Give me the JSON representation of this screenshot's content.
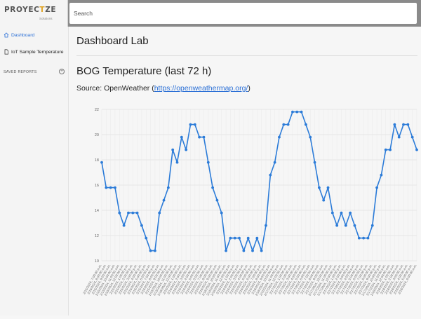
{
  "logo": {
    "text_a": "PROYEC",
    "text_b": "T",
    "text_c": "ZE",
    "sub": "Solutions"
  },
  "search": {
    "placeholder": "Search"
  },
  "sidebar": {
    "items": [
      {
        "label": "Dashboard",
        "icon": "home-icon",
        "active": true
      },
      {
        "label": "IoT Sample Temperature",
        "icon": "document-icon",
        "active": false
      }
    ],
    "saved_reports_label": "SAVED REPORTS",
    "add_icon": "plus-circle-icon"
  },
  "main": {
    "page_title": "Dashboard Lab",
    "chart_title": "BOG Temperature (last 72 h)",
    "source_prefix": "Source: OpenWeather (",
    "source_link": "https://openweathermap.org/",
    "source_suffix": ")"
  },
  "colors": {
    "accent": "#2a6fd6",
    "line": "#2b7bd8",
    "logo_accent": "#e0a426"
  },
  "chart_data": {
    "type": "line",
    "ylim": [
      10,
      22
    ],
    "yticks": [
      10,
      12,
      14,
      16,
      18,
      20,
      22
    ],
    "grid": true,
    "x": [
      "2/15/2024, 7:00:00 a.m.",
      "2/15/2024, 8:00:00 a.m.",
      "2/15/2024, 9:00:00 a.m.",
      "2/15/2024, 10:00:00 a.m.",
      "2/15/2024, 11:00:00 a.m.",
      "2/15/2024, 12:00:00 p.m.",
      "2/15/2024, 1:00:00 p.m.",
      "2/15/2024, 2:00:00 p.m.",
      "2/15/2024, 3:00:00 p.m.",
      "2/15/2024, 4:00:00 p.m.",
      "2/15/2024, 5:00:00 p.m.",
      "2/15/2024, 6:00:00 p.m.",
      "2/15/2024, 7:00:00 p.m.",
      "2/15/2024, 8:00:00 p.m.",
      "2/15/2024, 9:00:00 p.m.",
      "2/15/2024, 10:00:00 p.m.",
      "2/15/2024, 11:00:00 p.m.",
      "2/16/2024, 12:00:00 a.m.",
      "2/16/2024, 1:00:00 a.m.",
      "2/16/2024, 2:00:00 a.m.",
      "2/16/2024, 3:00:00 a.m.",
      "2/16/2024, 4:00:00 a.m.",
      "2/16/2024, 5:00:00 a.m.",
      "2/16/2024, 6:00:00 a.m.",
      "2/16/2024, 7:00:00 a.m.",
      "2/16/2024, 8:00:00 a.m.",
      "2/16/2024, 9:00:00 a.m.",
      "2/16/2024, 10:00:00 a.m.",
      "2/16/2024, 11:00:00 a.m.",
      "2/16/2024, 12:00:00 p.m.",
      "2/16/2024, 1:00:00 p.m.",
      "2/16/2024, 2:00:00 p.m.",
      "2/16/2024, 3:00:00 p.m.",
      "2/16/2024, 4:00:00 p.m.",
      "2/16/2024, 5:00:00 p.m.",
      "2/16/2024, 6:00:00 p.m.",
      "2/16/2024, 7:00:00 p.m.",
      "2/16/2024, 8:00:00 p.m.",
      "2/16/2024, 9:00:00 p.m.",
      "2/16/2024, 10:00:00 p.m.",
      "2/16/2024, 11:00:00 p.m.",
      "2/17/2024, 12:00:00 a.m.",
      "2/17/2024, 1:00:00 a.m.",
      "2/17/2024, 2:00:00 a.m.",
      "2/17/2024, 3:00:00 a.m.",
      "2/17/2024, 4:00:00 a.m.",
      "2/17/2024, 5:00:00 a.m.",
      "2/17/2024, 6:00:00 a.m.",
      "2/17/2024, 7:00:00 a.m.",
      "2/17/2024, 8:00:00 a.m.",
      "2/17/2024, 9:00:00 a.m.",
      "2/17/2024, 10:00:00 a.m.",
      "2/17/2024, 11:00:00 a.m.",
      "2/17/2024, 12:00:00 p.m.",
      "2/17/2024, 1:00:00 p.m.",
      "2/17/2024, 2:00:00 p.m.",
      "2/17/2024, 3:00:00 p.m.",
      "2/17/2024, 4:00:00 p.m.",
      "2/17/2024, 5:00:00 p.m.",
      "2/17/2024, 6:00:00 p.m.",
      "2/17/2024, 7:00:00 p.m.",
      "2/17/2024, 8:00:00 p.m.",
      "2/17/2024, 9:00:00 p.m.",
      "2/17/2024, 10:00:00 p.m.",
      "2/17/2024, 11:00:00 p.m.",
      "2/18/2024, 12:00:00 a.m.",
      "2/18/2024, 1:00:00 a.m.",
      "2/18/2024, 2:00:00 a.m.",
      "2/18/2024, 3:00:00 a.m.",
      "2/18/2024, 4:00:00 a.m.",
      "2/18/2024, 5:00:00 a.m.",
      "2/18/2024, 6:00:00 a.m."
    ],
    "series": [
      {
        "values": [
          17.8,
          15.8,
          15.8,
          15.8,
          13.8,
          12.8,
          13.8,
          13.8,
          13.8,
          12.8,
          11.8,
          10.8,
          10.8,
          13.8,
          14.8,
          15.8,
          18.8,
          17.8,
          19.8,
          18.8,
          20.8,
          20.8,
          19.8,
          19.8,
          17.8,
          15.8,
          14.8,
          13.8,
          10.8,
          11.8,
          11.8,
          11.8,
          10.8,
          11.8,
          10.8,
          11.8,
          10.8,
          12.8,
          16.8,
          17.8,
          19.8,
          20.8,
          20.8,
          21.8,
          21.8,
          21.8,
          20.8,
          19.8,
          17.8,
          15.8,
          14.8,
          15.8,
          13.8,
          12.8,
          13.8,
          12.8,
          13.8,
          12.8,
          11.8,
          11.8,
          11.8,
          12.8,
          15.8,
          16.8,
          18.8,
          18.8,
          20.8,
          19.8,
          20.8,
          20.8,
          19.8,
          18.8
        ]
      }
    ]
  }
}
